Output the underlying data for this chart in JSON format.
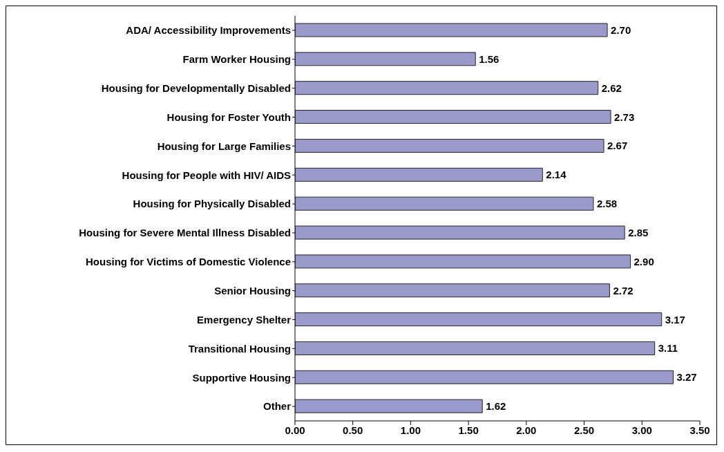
{
  "chart_data": {
    "type": "bar",
    "orientation": "horizontal",
    "categories": [
      "ADA/ Accessibility Improvements",
      "Farm Worker Housing",
      "Housing for Developmentally Disabled",
      "Housing for Foster Youth",
      "Housing for Large Families",
      "Housing for People with HIV/ AIDS",
      "Housing for Physically Disabled",
      "Housing for Severe Mental Illness Disabled",
      "Housing for Victims of Domestic Violence",
      "Senior Housing",
      "Emergency Shelter",
      "Transitional Housing",
      "Supportive Housing",
      "Other"
    ],
    "values": [
      2.7,
      1.56,
      2.62,
      2.73,
      2.67,
      2.14,
      2.58,
      2.85,
      2.9,
      2.72,
      3.17,
      3.11,
      3.27,
      1.62
    ],
    "value_labels": [
      "2.70",
      "1.56",
      "2.62",
      "2.73",
      "2.67",
      "2.14",
      "2.58",
      "2.85",
      "2.90",
      "2.72",
      "3.17",
      "3.11",
      "3.27",
      "1.62"
    ],
    "color": "#9999cc",
    "xlim": [
      0,
      3.5
    ],
    "xticks": [
      {
        "value": 0,
        "label": "0.00"
      },
      {
        "value": 0.5,
        "label": "0.50"
      },
      {
        "value": 1,
        "label": "1.00"
      },
      {
        "value": 1.5,
        "label": "1.50"
      },
      {
        "value": 2,
        "label": "2.00"
      },
      {
        "value": 2.5,
        "label": "2.50"
      },
      {
        "value": 3,
        "label": "3.00"
      },
      {
        "value": 3.5,
        "label": "3.50"
      }
    ],
    "grid": false,
    "legend": false
  }
}
